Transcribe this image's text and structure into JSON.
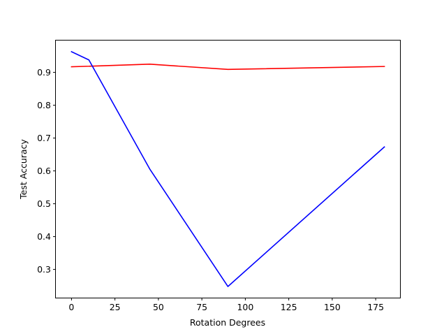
{
  "chart_data": {
    "type": "line",
    "title": "",
    "xlabel": "Rotation Degrees",
    "ylabel": "Test Accuracy",
    "xlim": [
      -9,
      189
    ],
    "ylim": [
      0.214,
      0.997
    ],
    "grid": false,
    "xticks": [
      0,
      25,
      50,
      75,
      100,
      125,
      150,
      175
    ],
    "yticks": [
      0.3,
      0.4,
      0.5,
      0.6,
      0.7,
      0.8,
      0.9
    ],
    "series": [
      {
        "color": "#ff0000",
        "x": [
          0,
          45,
          90,
          180
        ],
        "y": [
          0.917,
          0.925,
          0.909,
          0.918
        ]
      },
      {
        "color": "#0000ff",
        "x": [
          0,
          10,
          45,
          90,
          180
        ],
        "y": [
          0.963,
          0.938,
          0.606,
          0.248,
          0.673
        ]
      }
    ]
  }
}
